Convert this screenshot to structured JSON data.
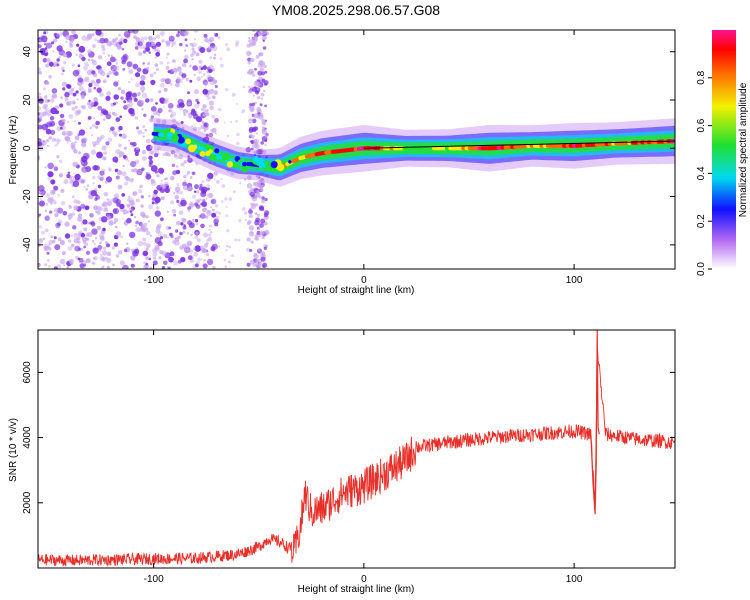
{
  "title": "YM08.2025.298.06.57.G08",
  "colors": {
    "snr_line": "#e8302a",
    "axis": "#000000",
    "scatter_purple": "#7a2ee0",
    "scatter_light": "#c9a6f0"
  },
  "chart_data": [
    {
      "type": "heatmap",
      "name": "spectrogram",
      "xlabel": "Height of straight line (km)",
      "ylabel": "Frequency (Hz)",
      "xlim": [
        -155,
        148
      ],
      "ylim": [
        -50,
        49
      ],
      "x_ticks": [
        -100,
        0,
        100
      ],
      "y_ticks": [
        -40,
        -20,
        0,
        20,
        40
      ],
      "colorbar": {
        "label": "Normalized spectral amplitude",
        "range": [
          0.0,
          1.0
        ],
        "ticks": [
          0.0,
          0.2,
          0.4,
          0.6,
          0.8
        ],
        "tick_labels": [
          "0.0",
          "0.2",
          "0.4",
          "0.6",
          "0.8"
        ]
      },
      "ridge": [
        {
          "x": -100,
          "f": 6,
          "amp": 0.25
        },
        {
          "x": -90,
          "f": 5,
          "amp": 0.3
        },
        {
          "x": -80,
          "f": 1,
          "amp": 0.35
        },
        {
          "x": -70,
          "f": -3,
          "amp": 0.35
        },
        {
          "x": -60,
          "f": -6,
          "amp": 0.3
        },
        {
          "x": -50,
          "f": -7,
          "amp": 0.2
        },
        {
          "x": -40,
          "f": -8,
          "amp": 0.6
        },
        {
          "x": -30,
          "f": -4,
          "amp": 0.75
        },
        {
          "x": -20,
          "f": -2,
          "amp": 0.85
        },
        {
          "x": -10,
          "f": -1,
          "amp": 0.9
        },
        {
          "x": 0,
          "f": 0,
          "amp": 0.95
        },
        {
          "x": 20,
          "f": 0,
          "amp": 0.5
        },
        {
          "x": 40,
          "f": 0,
          "amp": 0.55
        },
        {
          "x": 60,
          "f": 0,
          "amp": 0.95
        },
        {
          "x": 80,
          "f": 1,
          "amp": 0.7
        },
        {
          "x": 100,
          "f": 1,
          "amp": 0.9
        },
        {
          "x": 120,
          "f": 2,
          "amp": 0.75
        },
        {
          "x": 148,
          "f": 3,
          "amp": 0.9
        }
      ]
    },
    {
      "type": "line",
      "name": "snr",
      "xlabel": "Height of straight line (km)",
      "ylabel": "SNR (10 * v/v)",
      "xlim": [
        -155,
        148
      ],
      "ylim": [
        0,
        7300
      ],
      "x_ticks": [
        -100,
        0,
        100
      ],
      "y_ticks": [
        2000,
        4000,
        6000
      ],
      "series": [
        {
          "name": "SNR",
          "x": [
            -155,
            -140,
            -120,
            -100,
            -80,
            -60,
            -50,
            -45,
            -40,
            -33,
            -30,
            -28,
            -25,
            -20,
            -10,
            0,
            10,
            20,
            25,
            40,
            60,
            80,
            100,
            108,
            110,
            111,
            115,
            130,
            148
          ],
          "y": [
            250,
            230,
            250,
            280,
            300,
            420,
            650,
            900,
            800,
            500,
            1300,
            2300,
            1700,
            1800,
            2300,
            2500,
            2900,
            3300,
            3700,
            3850,
            4000,
            4100,
            4200,
            4100,
            1700,
            6800,
            4100,
            3950,
            3850
          ]
        }
      ]
    }
  ]
}
